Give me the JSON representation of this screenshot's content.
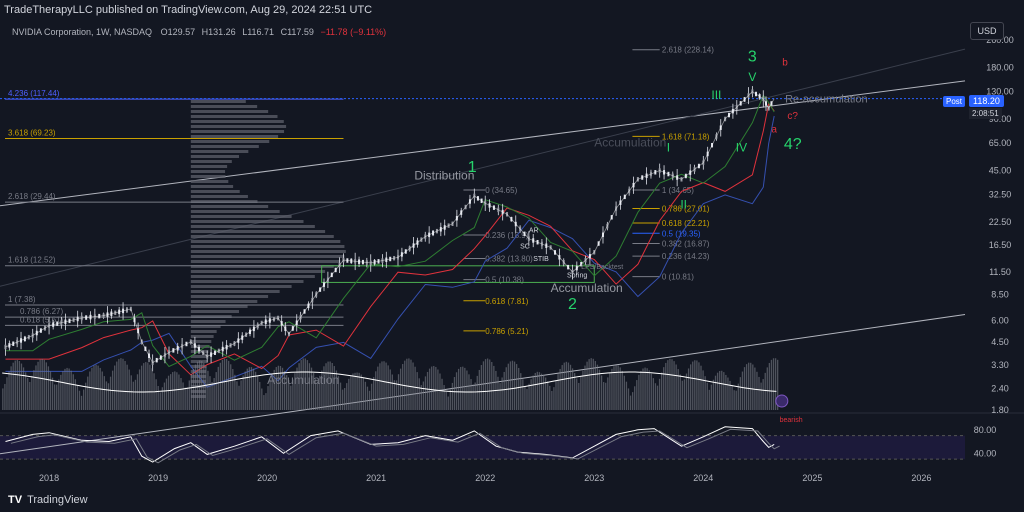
{
  "header": {
    "published": "TradeTherapyLLC published on TradingView.com, Aug 29, 2024 22:51 UTC",
    "symbol": "NVIDIA Corporation, 1W, NASDAQ",
    "o_label": "O",
    "o": "129.57",
    "h_label": "H",
    "h": "131.26",
    "l_label": "L",
    "l": "116.71",
    "c_label": "C",
    "c": "117.59",
    "change": "−11.78 (−9.11%)"
  },
  "currency": "USD",
  "post": {
    "label": "Post",
    "price": "118.20",
    "countdown": "2:08:51"
  },
  "logo": {
    "mark": "TV",
    "text": "TradingView"
  },
  "colors": {
    "up": "#e0e3eb",
    "down": "#ffffff",
    "green": "#26d36b",
    "red": "#e0323c",
    "gold": "#c8a000",
    "blue": "#2962ff",
    "gray": "#787b86"
  },
  "chart_data": {
    "type": "line",
    "title": "NVIDIA Corporation, 1W, NASDAQ",
    "y_scale": "log",
    "ylim": [
      1.8,
      260
    ],
    "xlim": [
      2017.55,
      2026.4
    ],
    "y_ticks": [
      "260.00",
      "180.00",
      "130.00",
      "90.00",
      "65.00",
      "45.00",
      "32.50",
      "22.50",
      "16.50",
      "11.50",
      "8.50",
      "6.00",
      "4.50",
      "3.30",
      "2.40",
      "1.80"
    ],
    "x_ticks": [
      "2018",
      "2019",
      "2020",
      "2021",
      "2022",
      "2023",
      "2024",
      "2025",
      "2026"
    ],
    "series": [
      {
        "name": "NVDA weekly close (approx)",
        "points": [
          [
            2017.6,
            4.2
          ],
          [
            2017.85,
            4.9
          ],
          [
            2018.0,
            5.6
          ],
          [
            2018.3,
            6.2
          ],
          [
            2018.5,
            6.4
          ],
          [
            2018.75,
            7.0
          ],
          [
            2018.85,
            4.5
          ],
          [
            2018.95,
            3.4
          ],
          [
            2019.1,
            3.9
          ],
          [
            2019.3,
            4.5
          ],
          [
            2019.45,
            3.7
          ],
          [
            2019.7,
            4.4
          ],
          [
            2019.95,
            5.8
          ],
          [
            2020.1,
            6.2
          ],
          [
            2020.2,
            5.0
          ],
          [
            2020.45,
            8.5
          ],
          [
            2020.7,
            13.5
          ],
          [
            2020.95,
            13.0
          ],
          [
            2021.2,
            14.0
          ],
          [
            2021.45,
            18.5
          ],
          [
            2021.7,
            22.0
          ],
          [
            2021.9,
            32.0
          ],
          [
            2022.0,
            29.0
          ],
          [
            2022.2,
            25.0
          ],
          [
            2022.4,
            18.0
          ],
          [
            2022.6,
            16.0
          ],
          [
            2022.8,
            11.5
          ],
          [
            2023.0,
            15.0
          ],
          [
            2023.2,
            27.0
          ],
          [
            2023.4,
            40.0
          ],
          [
            2023.6,
            45.0
          ],
          [
            2023.8,
            40.0
          ],
          [
            2024.0,
            50.0
          ],
          [
            2024.2,
            90.0
          ],
          [
            2024.45,
            130.0
          ],
          [
            2024.55,
            118.0
          ],
          [
            2024.6,
            104.0
          ],
          [
            2024.65,
            118.2
          ]
        ]
      }
    ],
    "rsi": {
      "ylim": [
        20,
        100
      ],
      "ticks": [
        "80.00",
        "40.00"
      ],
      "points": [
        [
          2017.6,
          60
        ],
        [
          2017.85,
          72
        ],
        [
          2018.0,
          75
        ],
        [
          2018.3,
          62
        ],
        [
          2018.55,
          60
        ],
        [
          2018.75,
          68
        ],
        [
          2018.85,
          35
        ],
        [
          2018.95,
          25
        ],
        [
          2019.15,
          48
        ],
        [
          2019.3,
          58
        ],
        [
          2019.45,
          38
        ],
        [
          2019.7,
          52
        ],
        [
          2019.95,
          68
        ],
        [
          2020.15,
          40
        ],
        [
          2020.4,
          70
        ],
        [
          2020.65,
          78
        ],
        [
          2020.95,
          55
        ],
        [
          2021.2,
          58
        ],
        [
          2021.45,
          70
        ],
        [
          2021.7,
          62
        ],
        [
          2021.9,
          78
        ],
        [
          2022.1,
          52
        ],
        [
          2022.3,
          42
        ],
        [
          2022.55,
          38
        ],
        [
          2022.8,
          32
        ],
        [
          2023.0,
          52
        ],
        [
          2023.2,
          72
        ],
        [
          2023.4,
          80
        ],
        [
          2023.55,
          82
        ],
        [
          2023.8,
          52
        ],
        [
          2024.0,
          68
        ],
        [
          2024.2,
          85
        ],
        [
          2024.45,
          82
        ],
        [
          2024.55,
          60
        ],
        [
          2024.6,
          50
        ],
        [
          2024.65,
          55
        ]
      ]
    },
    "fib_levels": [
      {
        "label": "4.236 (117.44)",
        "value": 117.44
      },
      {
        "label": "3.618 (69.23)",
        "value": 69.23
      },
      {
        "label": "2.618 (29.44)",
        "value": 29.44
      },
      {
        "label": "1.618 (12.52)",
        "value": 12.52
      },
      {
        "label": "1 (7.38)",
        "value": 7.38
      },
      {
        "label": "0.786 (6.27)",
        "value": 6.27
      },
      {
        "label": "0.618 (5.61)",
        "value": 5.61
      }
    ],
    "fib_ext": [
      {
        "label": "2.618 (228.14)",
        "value": 228.14
      },
      {
        "label": "1.618 (71.18)",
        "value": 71.18
      },
      {
        "label": "1 (34.65)",
        "value": 34.65
      },
      {
        "label": "0.786 (27.01)",
        "value": 27.01
      },
      {
        "label": "0.618 (22.21)",
        "value": 22.21
      },
      {
        "label": "0.5 (19.35)",
        "value": 19.35
      },
      {
        "label": "0.382 (16.87)",
        "value": 16.87
      },
      {
        "label": "0.236 (14.23)",
        "value": 14.23
      },
      {
        "label": "0 (10.81)",
        "value": 10.81
      }
    ],
    "fib_ret": [
      {
        "label": "0 (34.65)",
        "value": 34.65
      },
      {
        "label": "0.236 (18.9)",
        "value": 18.9
      },
      {
        "label": "0.382 (13.80)",
        "value": 13.8
      },
      {
        "label": "0.5 (10.38)",
        "value": 10.38
      },
      {
        "label": "0.618 (7.81)",
        "value": 7.81
      },
      {
        "label": "0.786 (5.21)",
        "value": 5.21
      }
    ],
    "annotations": {
      "distribution": "Distribution",
      "accumulation": "Accumulation",
      "reaccumulation": "Re-accumulation",
      "spring": "Spring",
      "lps": "LPS/Backtest",
      "sc": "SC",
      "stib": "STIB",
      "ar": "AR",
      "bearish": "bearish",
      "w1": "1",
      "w2": "2",
      "w3": "3",
      "w4": "4?",
      "wI": "I",
      "wII": "II",
      "wIII": "III",
      "wIV": "IV",
      "wV": "V",
      "a": "a",
      "b": "b",
      "c": "c?"
    }
  }
}
